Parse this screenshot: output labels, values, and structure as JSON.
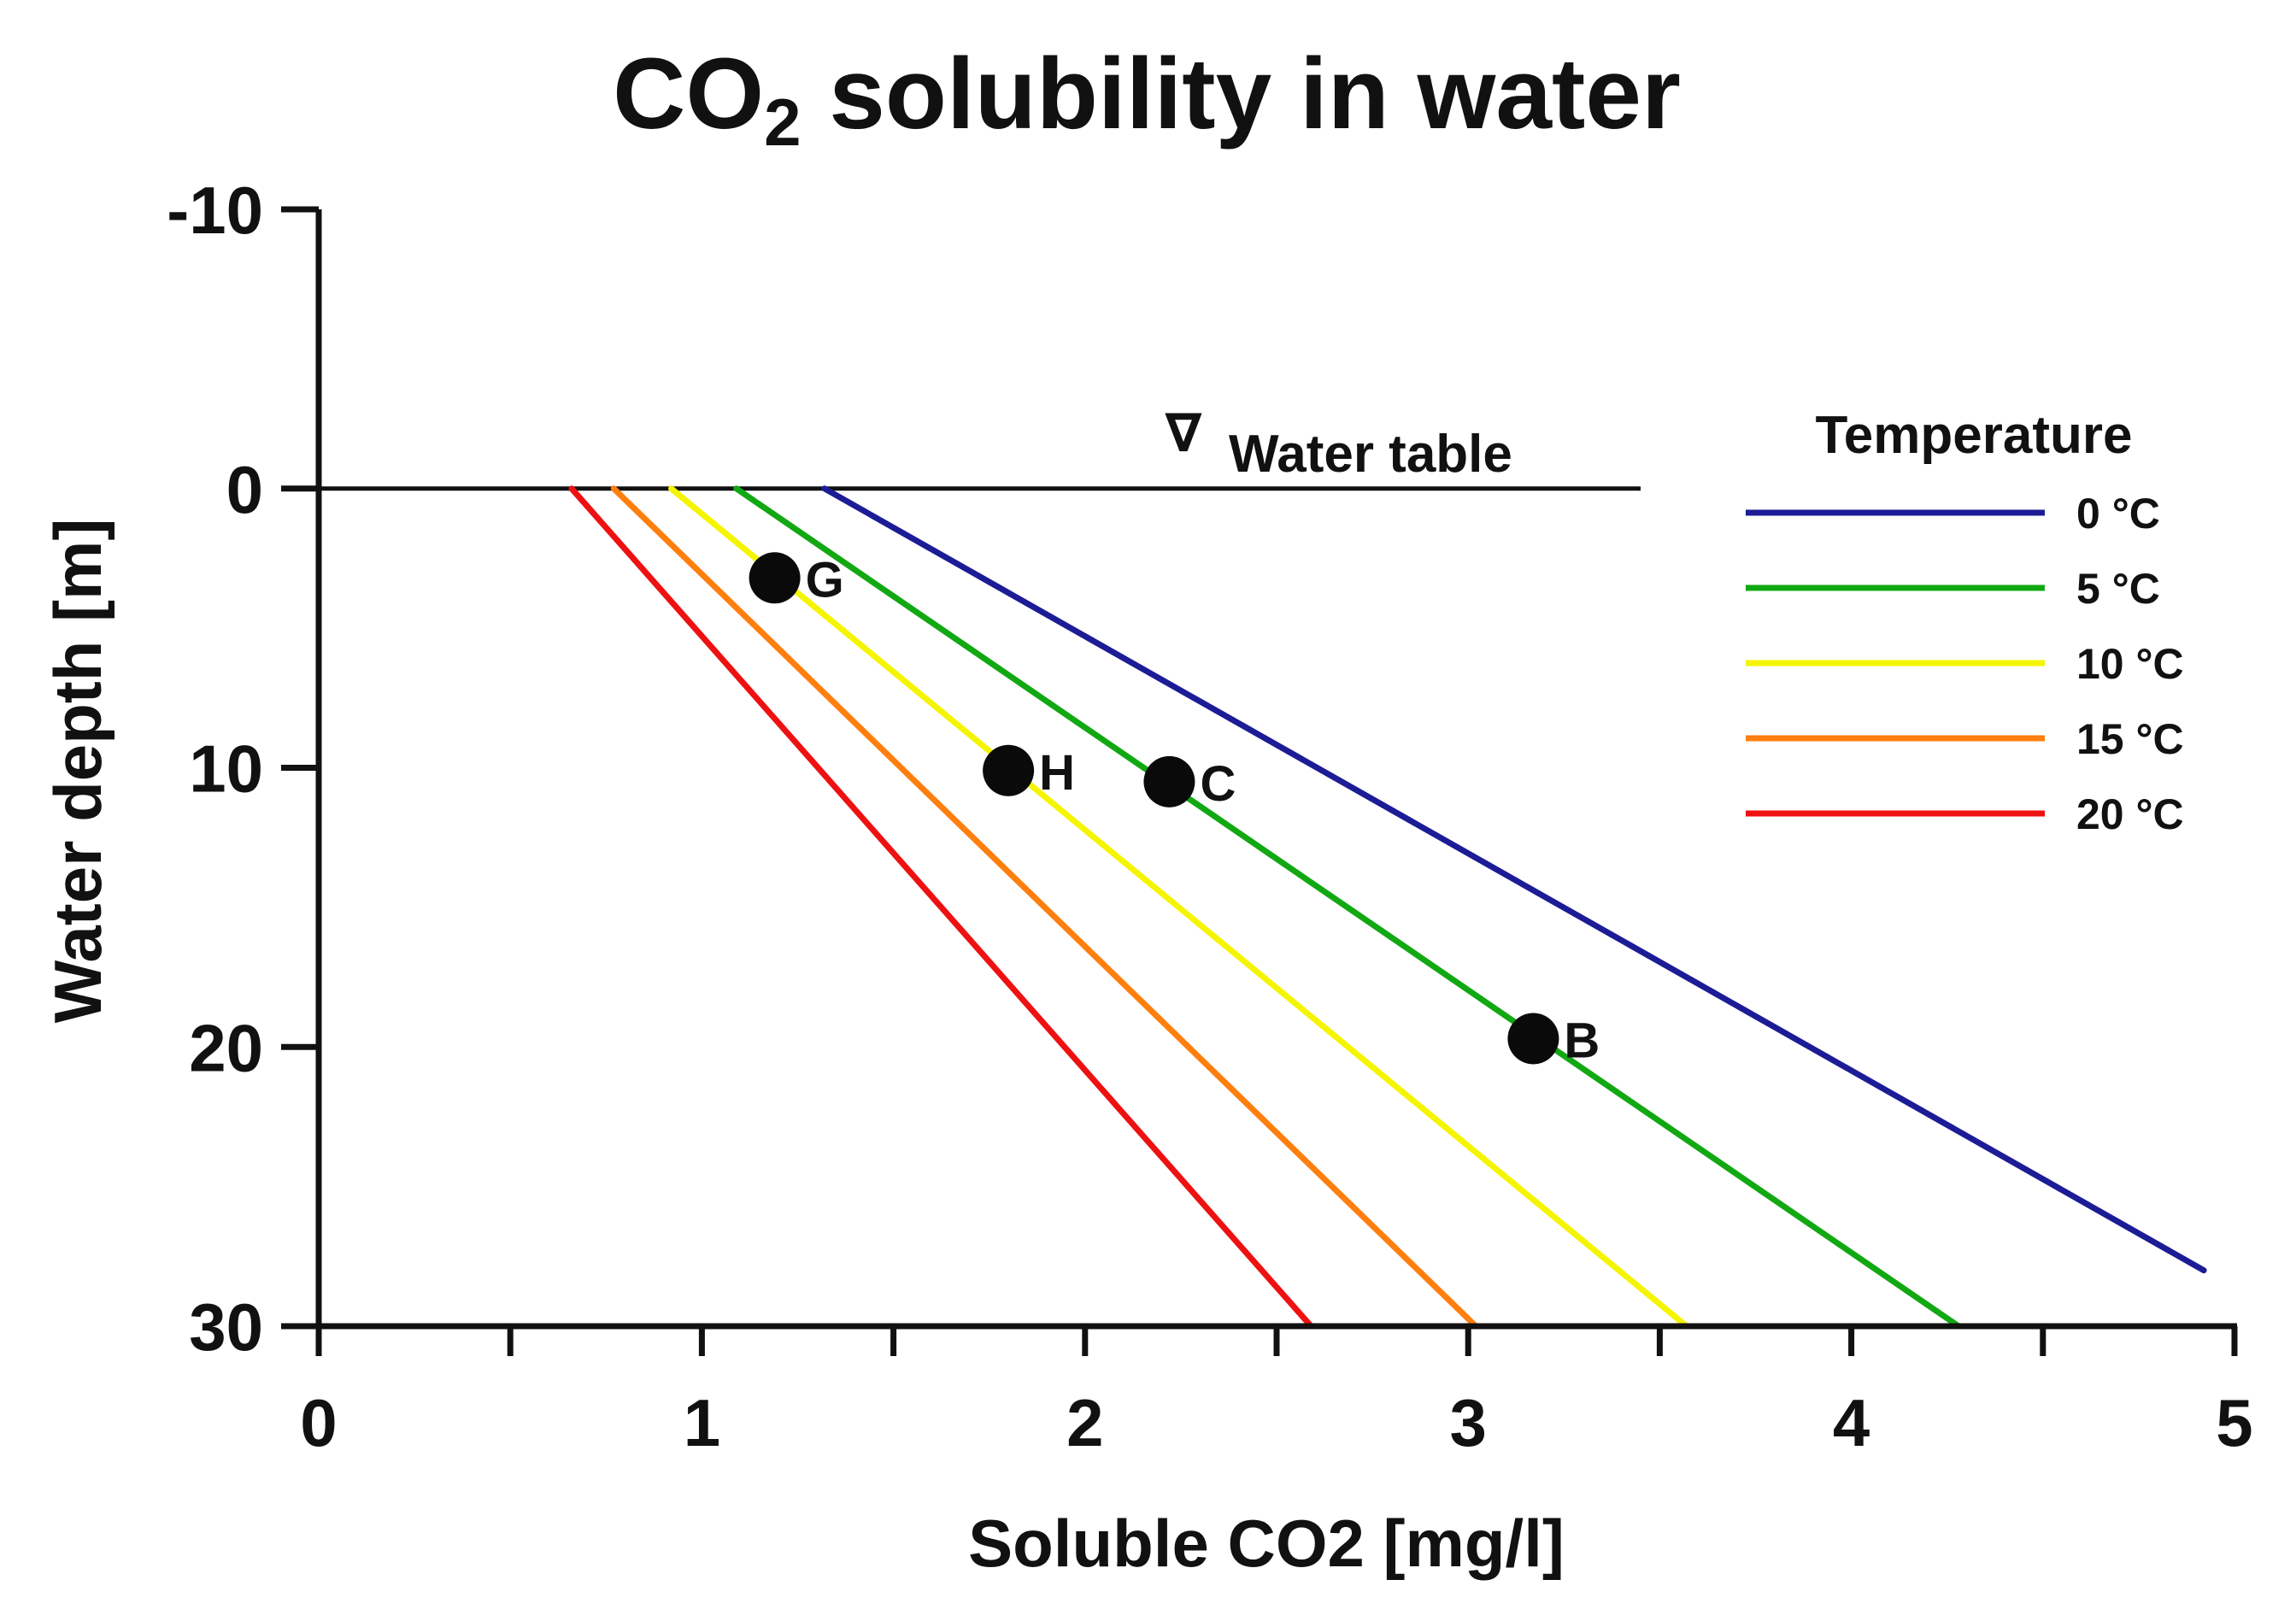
{
  "chart_data": {
    "type": "line",
    "title": {
      "main": "CO",
      "sub": "2",
      "rest": " solubility in water"
    },
    "xlabel": "Soluble CO2 [mg/l]",
    "ylabel": "Water depth [m]",
    "xlim": [
      0,
      5
    ],
    "ylim": [
      -10,
      30
    ],
    "y_inverted": true,
    "x_ticks": [
      0,
      1,
      2,
      3,
      4,
      5
    ],
    "x_tick_labels": [
      "0",
      "1",
      "2",
      "3",
      "4",
      "5"
    ],
    "x_minor_ticks": [
      0.5,
      1.5,
      2.5,
      3.5,
      4.5
    ],
    "y_ticks": [
      -10,
      0,
      10,
      20,
      30
    ],
    "y_tick_labels": [
      "-10",
      "0",
      "10",
      "20",
      "30"
    ],
    "grid": false,
    "legend_position": "top-right",
    "legend_title": "Temperature",
    "water_table": {
      "label": "Water table",
      "symbol": "∇",
      "depth": 0,
      "x_range": [
        0,
        3.45
      ]
    },
    "series": [
      {
        "name": "0 °C",
        "color": "#1c1c96",
        "x": [
          1.32,
          4.92
        ],
        "y": [
          0,
          28
        ]
      },
      {
        "name": "5 °C",
        "color": "#12a812",
        "x": [
          1.09,
          4.28
        ],
        "y": [
          0,
          30
        ]
      },
      {
        "name": "10 °C",
        "color": "#f5f500",
        "x": [
          0.92,
          3.57
        ],
        "y": [
          0,
          30
        ]
      },
      {
        "name": "15 °C",
        "color": "#ff7f0e",
        "x": [
          0.77,
          3.02
        ],
        "y": [
          0,
          30
        ]
      },
      {
        "name": "20 °C",
        "color": "#ee1111",
        "x": [
          0.66,
          2.59
        ],
        "y": [
          0,
          30
        ]
      }
    ],
    "points": [
      {
        "label": "G",
        "x": 1.19,
        "y": 3.2
      },
      {
        "label": "H",
        "x": 1.8,
        "y": 10.1
      },
      {
        "label": "C",
        "x": 2.22,
        "y": 10.5
      },
      {
        "label": "B",
        "x": 3.17,
        "y": 19.7
      }
    ]
  }
}
